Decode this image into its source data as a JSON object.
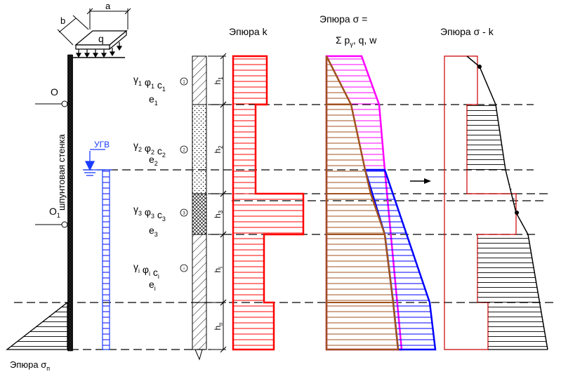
{
  "titles": {
    "k": "Эпюра k",
    "sigma_line1": "Эпюра σ =",
    "sigma_line2": "Σ p",
    "sigma_line2_sub": "γ",
    "sigma_line2_rest": ", q, w",
    "sigma_minus_k": "Эпюра σ - k",
    "sigma_p_main": "Эпюра σ",
    "sigma_p_sub": "п"
  },
  "wall_label": "шпунтовая стенка",
  "load": {
    "a": "a",
    "b": "b",
    "q": "q"
  },
  "gwl_label": "УГВ",
  "points": {
    "O": "O",
    "O1_main": "O",
    "O1_sub": "1"
  },
  "layers": [
    {
      "num": "1",
      "h": "h",
      "h_sub": "1",
      "params": [
        "γ",
        "φ",
        "c"
      ],
      "sub": "1",
      "e": "e"
    },
    {
      "num": "2",
      "h": "h",
      "h_sub": "2",
      "params": [
        "γ",
        "φ",
        "c"
      ],
      "sub": "2",
      "e": "e"
    },
    {
      "num": "3",
      "h": "h",
      "h_sub": "3",
      "params": [
        "γ",
        "φ",
        "c"
      ],
      "sub": "3",
      "e": "e"
    },
    {
      "num": "i",
      "h": "h",
      "h_sub": "i",
      "params": [
        "γ",
        "φ",
        "c"
      ],
      "sub": "i",
      "e": "e"
    },
    {
      "num": "",
      "h": "h",
      "h_sub": "n",
      "params": [],
      "sub": "",
      "e": ""
    }
  ],
  "colors": {
    "k": "#ff0000",
    "sigma_gamma": "#a0521e",
    "sigma_total": "#ff00ff",
    "sigma_water": "#0000ff",
    "sigma_k": "#cc0000",
    "gwl": "#1a3cff",
    "black": "#000000"
  }
}
